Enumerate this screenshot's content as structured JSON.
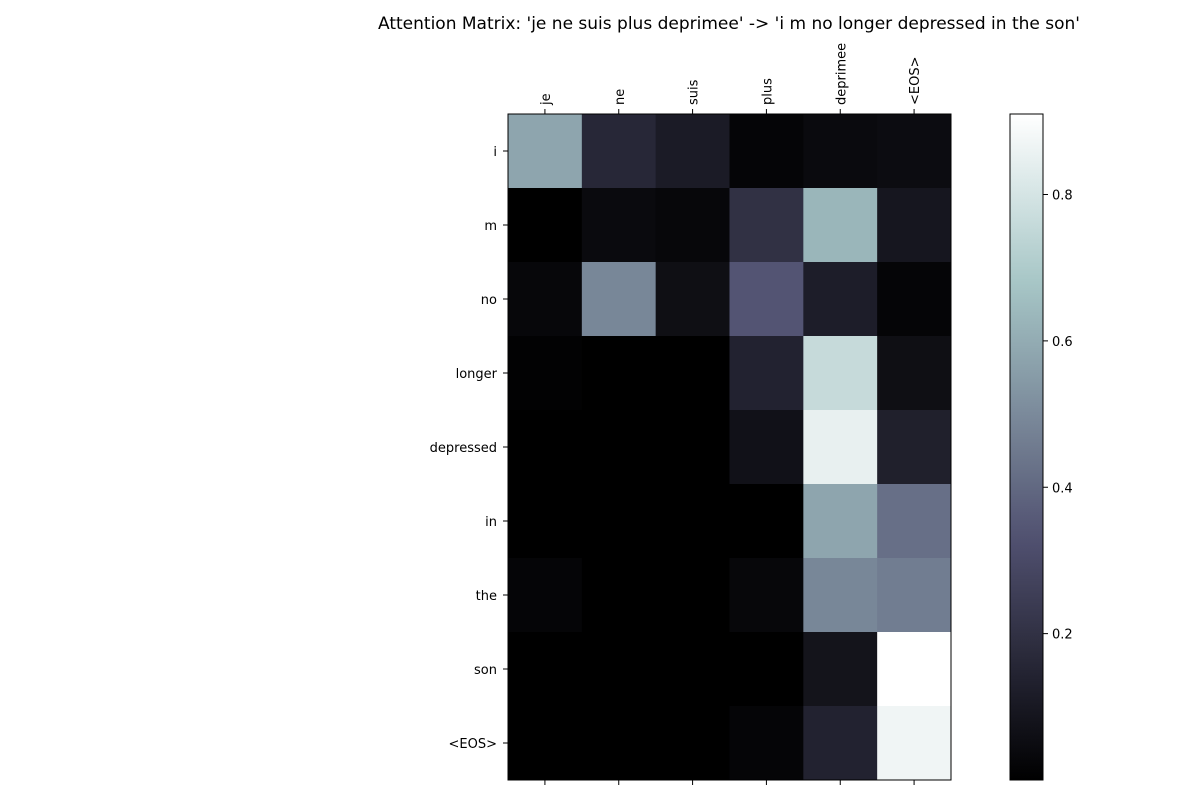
{
  "chart_data": {
    "type": "heatmap",
    "title": "Attention Matrix: 'je ne suis plus deprimee' -> 'i m no longer depressed in the son'",
    "x_labels": [
      "je",
      "ne",
      "suis",
      "plus",
      "deprimee",
      "<EOS>"
    ],
    "y_labels": [
      "i",
      "m",
      "no",
      "longer",
      "depressed",
      "in",
      "the",
      "son",
      "<EOS>"
    ],
    "values": [
      [
        0.58,
        0.16,
        0.11,
        0.02,
        0.04,
        0.05
      ],
      [
        0.0,
        0.04,
        0.03,
        0.2,
        0.63,
        0.09
      ],
      [
        0.03,
        0.49,
        0.06,
        0.34,
        0.12,
        0.02
      ],
      [
        0.01,
        0.0,
        0.0,
        0.14,
        0.76,
        0.06
      ],
      [
        0.0,
        0.0,
        0.0,
        0.07,
        0.85,
        0.13
      ],
      [
        0.0,
        0.0,
        0.0,
        0.0,
        0.58,
        0.42
      ],
      [
        0.02,
        0.0,
        0.0,
        0.03,
        0.49,
        0.46
      ],
      [
        0.0,
        0.0,
        0.0,
        0.0,
        0.08,
        0.91
      ],
      [
        0.0,
        0.0,
        0.0,
        0.02,
        0.14,
        0.87
      ]
    ],
    "colormap": "bone",
    "value_range": [
      0.0,
      0.91
    ],
    "colorbar_ticks": [
      0.2,
      0.4,
      0.6,
      0.8
    ],
    "colorbar_tick_labels": [
      "0.2",
      "0.4",
      "0.6",
      "0.8"
    ],
    "x_tick_position": "top",
    "x_label_rotation": "vertical",
    "grid": false,
    "legend": "colorbar-right"
  }
}
